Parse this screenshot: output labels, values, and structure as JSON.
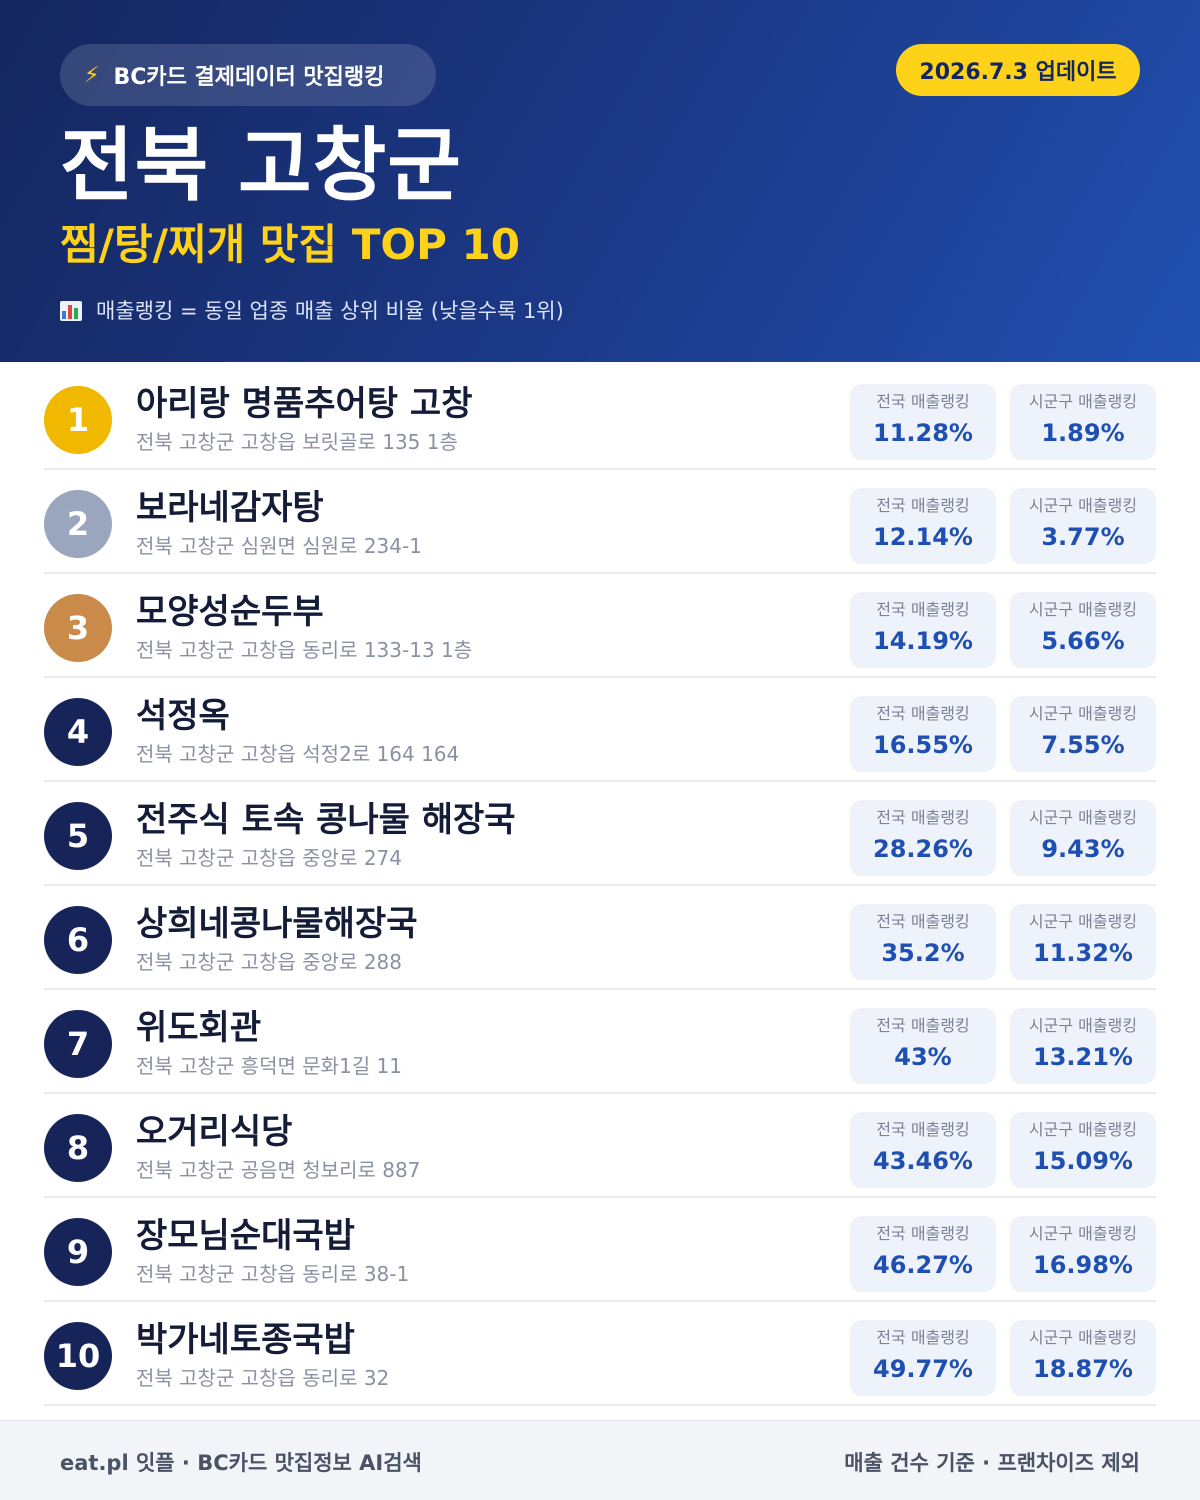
{
  "header": {
    "badge_icon": "lightning-bolt-icon",
    "badge_text": "BC카드 결제데이터 맛집랭킹",
    "update_text": "2026.7.3 업데이트",
    "region": "전북 고창군",
    "subtitle": "찜/탕/찌개 맛집 TOP 10",
    "note_icon": "bar-chart-icon",
    "note_text": "매출랭킹 = 동일 업종 매출 상위 비율 (낮을수록 1위)"
  },
  "colors": {
    "gold": "#f1b800",
    "silver": "#9aa6bd",
    "bronze": "#c98a4a",
    "navy": "#16245a",
    "accent_yellow": "#ffd21a",
    "value_blue": "#1f4fb0"
  },
  "labels": {
    "national": "전국 매출랭킹",
    "local": "시군구 매출랭킹"
  },
  "restaurants": [
    {
      "rank": "1",
      "name": "아리랑 명품추어탕 고창",
      "address": "전북 고창군 고창읍 보릿골로 135 1층",
      "national": "11.28%",
      "local": "1.89%",
      "medal": "gold"
    },
    {
      "rank": "2",
      "name": "보라네감자탕",
      "address": "전북 고창군 심원면 심원로 234-1",
      "national": "12.14%",
      "local": "3.77%",
      "medal": "silver"
    },
    {
      "rank": "3",
      "name": "모양성순두부",
      "address": "전북 고창군 고창읍 동리로 133-13 1층",
      "national": "14.19%",
      "local": "5.66%",
      "medal": "bronze"
    },
    {
      "rank": "4",
      "name": "석정옥",
      "address": "전북 고창군 고창읍 석정2로 164 164",
      "national": "16.55%",
      "local": "7.55%",
      "medal": "navy"
    },
    {
      "rank": "5",
      "name": "전주식 토속 콩나물 해장국",
      "address": "전북 고창군 고창읍 중앙로 274",
      "national": "28.26%",
      "local": "9.43%",
      "medal": "navy"
    },
    {
      "rank": "6",
      "name": "상희네콩나물해장국",
      "address": "전북 고창군 고창읍 중앙로 288",
      "national": "35.2%",
      "local": "11.32%",
      "medal": "navy"
    },
    {
      "rank": "7",
      "name": "위도회관",
      "address": "전북 고창군 흥덕면 문화1길 11",
      "national": "43%",
      "local": "13.21%",
      "medal": "navy"
    },
    {
      "rank": "8",
      "name": "오거리식당",
      "address": "전북 고창군 공음면 청보리로 887",
      "national": "43.46%",
      "local": "15.09%",
      "medal": "navy"
    },
    {
      "rank": "9",
      "name": "장모님순대국밥",
      "address": "전북 고창군 고창읍 동리로 38-1",
      "national": "46.27%",
      "local": "16.98%",
      "medal": "navy"
    },
    {
      "rank": "10",
      "name": "박가네토종국밥",
      "address": "전북 고창군 고창읍 동리로 32",
      "national": "49.77%",
      "local": "18.87%",
      "medal": "navy"
    }
  ],
  "footer": {
    "left": "eat.pl 잇플 · BC카드 맛집정보 AI검색",
    "right": "매출 건수 기준 · 프랜차이즈 제외"
  }
}
